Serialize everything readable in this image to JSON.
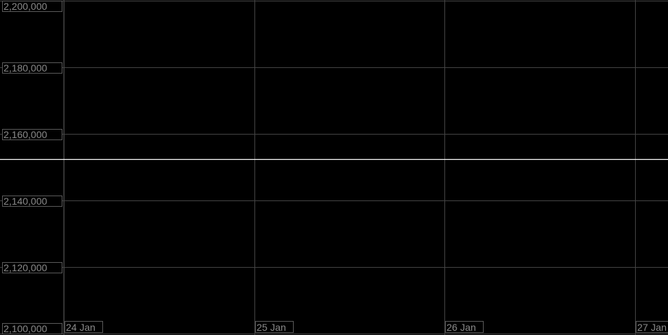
{
  "chart_data": {
    "type": "line",
    "title": "",
    "xlabel": "",
    "ylabel": "",
    "ylim": [
      2100000,
      2200000
    ],
    "y_ticks": [
      2200000,
      2180000,
      2160000,
      2140000,
      2120000,
      2100000
    ],
    "y_tick_labels": [
      "2,200,000",
      "2,180,000",
      "2,160,000",
      "2,140,000",
      "2,120,000",
      "2,100,000"
    ],
    "x_ticks": [
      "24 Jan",
      "25 Jan",
      "26 Jan",
      "27 Jan"
    ],
    "grid": true,
    "background": "#000000",
    "line_color": "#ffffff",
    "series": [
      {
        "x": [
          "24 Jan",
          "25 Jan",
          "26 Jan",
          "27 Jan"
        ],
        "values": [
          2152400,
          2152400,
          2152400,
          2152400
        ]
      }
    ]
  }
}
